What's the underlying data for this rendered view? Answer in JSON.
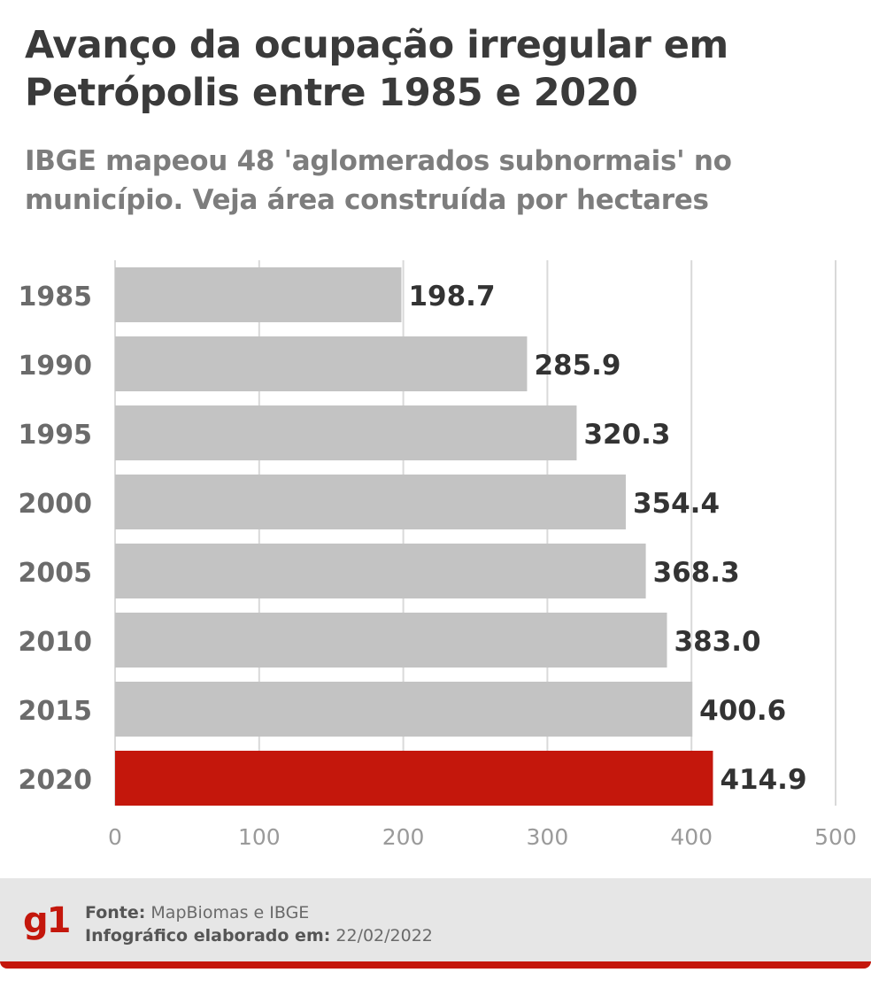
{
  "title": "Avanço da ocupação irregular em Petrópolis entre 1985 e 2020",
  "subtitle": "IBGE mapeou 48 'aglomerados subnormais' no município. Veja área construída por hectares",
  "colors": {
    "bar": "#c3c3c3",
    "highlight": "#c4170c",
    "grid": "#d9d9d9",
    "brand": "#c4170c"
  },
  "chart_data": {
    "type": "bar",
    "orientation": "horizontal",
    "categories": [
      "1985",
      "1990",
      "1995",
      "2000",
      "2005",
      "2010",
      "2015",
      "2020"
    ],
    "values": [
      198.7,
      285.9,
      320.3,
      354.4,
      368.3,
      383.0,
      400.6,
      414.9
    ],
    "value_labels": [
      "198.7",
      "285.9",
      "320.3",
      "354.4",
      "368.3",
      "383.0",
      "400.6",
      "414.9"
    ],
    "highlight_category": "2020",
    "xlim": [
      0,
      500
    ],
    "xticks": [
      0,
      100,
      200,
      300,
      400,
      500
    ],
    "grid": true
  },
  "footer": {
    "logo": "g1",
    "source_label": "Fonte:",
    "source_value": "MapBiomas e IBGE",
    "date_label": "Infográfico elaborado em:",
    "date_value": "22/02/2022"
  }
}
